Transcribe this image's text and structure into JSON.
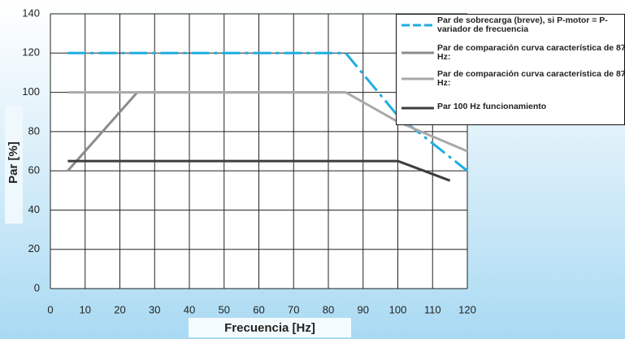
{
  "chart_data": {
    "type": "line",
    "xlabel": "Frecuencia [Hz]",
    "ylabel": "Par [%]",
    "xlim": [
      0,
      120
    ],
    "xticks": [
      0,
      10,
      20,
      30,
      40,
      50,
      60,
      70,
      80,
      90,
      100,
      110,
      120
    ],
    "ylim": [
      0,
      140
    ],
    "yticks": [
      0,
      20,
      40,
      60,
      80,
      100,
      120,
      140
    ],
    "grid": true,
    "legend": "upper right",
    "series": [
      {
        "name": "Par de sobrecarga (breve), si P-motor = P-variador de frecuencia",
        "color": "#1eaee0",
        "linestyle": "dashdot",
        "x": [
          5,
          85,
          100,
          120
        ],
        "values": [
          120,
          120,
          88,
          60
        ]
      },
      {
        "name": "Par de comparación curva característica de 87 Hz:",
        "color": "#8c8c8c",
        "linestyle": "solid",
        "x": [
          5,
          25,
          85
        ],
        "values": [
          60,
          100,
          100
        ]
      },
      {
        "name": "Par de comparación curva característica de 87 Hz:",
        "color": "#a9a9a9",
        "linestyle": "solid",
        "x": [
          5,
          85,
          100,
          120
        ],
        "values": [
          100,
          100,
          85,
          70
        ]
      },
      {
        "name": "Par 100 Hz funcionamiento",
        "color": "#3d3d3d",
        "linestyle": "solid",
        "x": [
          5,
          100,
          115
        ],
        "values": [
          65,
          65,
          55
        ]
      }
    ]
  }
}
